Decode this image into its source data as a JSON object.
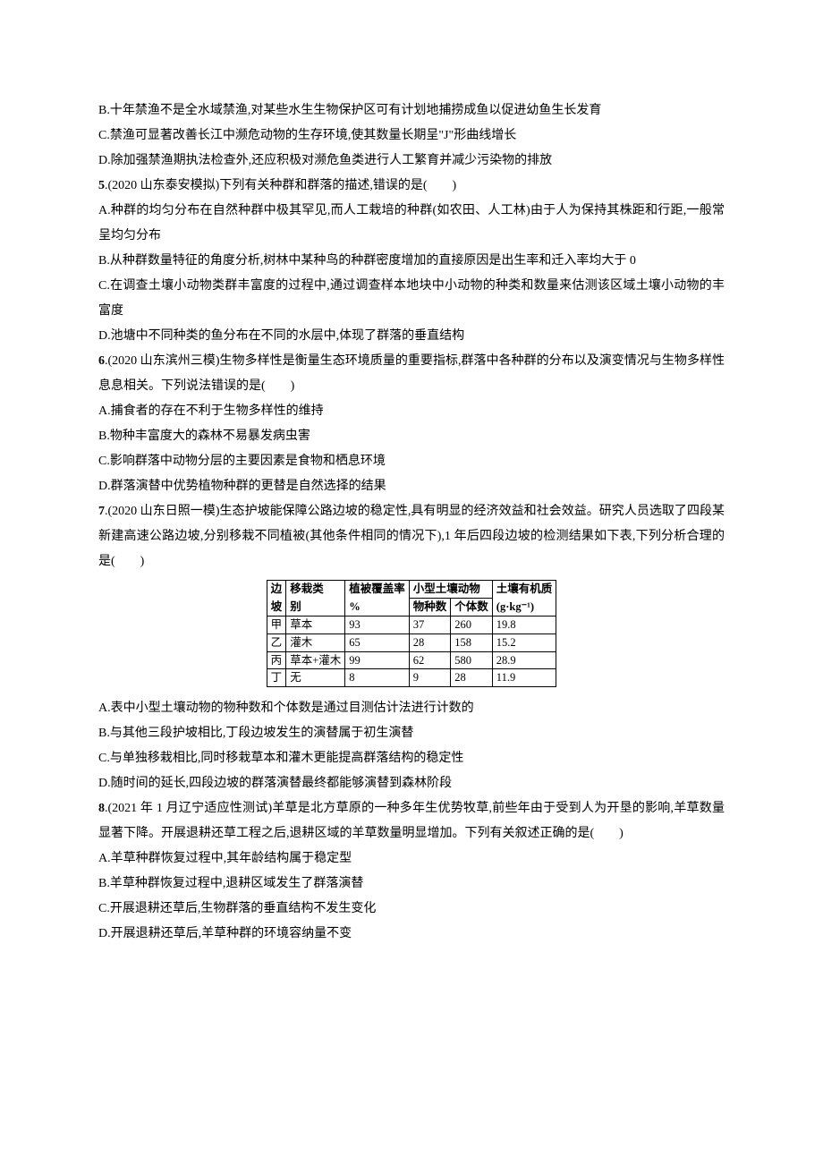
{
  "paras": {
    "p1": "B.十年禁渔不是全水域禁渔,对某些水生生物保护区可有计划地捕捞成鱼以促进幼鱼生长发育",
    "p2": "C.禁渔可显著改善长江中濒危动物的生存环境,使其数量长期呈\"J\"形曲线增长",
    "p3": "D.除加强禁渔期执法检查外,还应积极对濒危鱼类进行人工繁育并减少污染物的排放",
    "q5_num": "5",
    "q5_src": ".(2020 山东泰安模拟)下列有关种群和群落的描述,错误的是(　　)",
    "q5_A": "A.种群的均匀分布在自然种群中极其罕见,而人工栽培的种群(如农田、人工林)由于人为保持其株距和行距,一般常呈均匀分布",
    "q5_B": "B.从种群数量特征的角度分析,树林中某种鸟的种群密度增加的直接原因是出生率和迁入率均大于 0",
    "q5_C": "C.在调查土壤小动物类群丰富度的过程中,通过调查样本地块中小动物的种类和数量来估测该区域土壤小动物的丰富度",
    "q5_D": "D.池塘中不同种类的鱼分布在不同的水层中,体现了群落的垂直结构",
    "q6_num": "6",
    "q6_src": ".(2020 山东滨州三模)生物多样性是衡量生态环境质量的重要指标,群落中各种群的分布以及演变情况与生物多样性息息相关。下列说法错误的是(　　)",
    "q6_A": "A.捕食者的存在不利于生物多样性的维持",
    "q6_B": "B.物种丰富度大的森林不易暴发病虫害",
    "q6_C": "C.影响群落中动物分层的主要因素是食物和栖息环境",
    "q6_D": "D.群落演替中优势植物种群的更替是自然选择的结果",
    "q7_num": "7",
    "q7_src": ".(2020 山东日照一模)生态护坡能保障公路边坡的稳定性,具有明显的经济效益和社会效益。研究人员选取了四段某新建高速公路边坡,分别移栽不同植被(其他条件相同的情况下),1 年后四段边坡的检测结果如下表,下列分析合理的是(　　)",
    "q7_A": "A.表中小型土壤动物的物种数和个体数是通过目测估计法进行计数的",
    "q7_B": "B.与其他三段护坡相比,丁段边坡发生的演替属于初生演替",
    "q7_C": "C.与单独移栽相比,同时移栽草本和灌木更能提高群落结构的稳定性",
    "q7_D": "D.随时间的延长,四段边坡的群落演替最终都能够演替到森林阶段",
    "q8_num": "8",
    "q8_src": ".(2021 年 1 月辽宁适应性测试)羊草是北方草原的一种多年生优势牧草,前些年由于受到人为开垦的影响,羊草数量显著下降。开展退耕还草工程之后,退耕区域的羊草数量明显增加。下列有关叙述正确的是(　　)",
    "q8_A": "A.羊草种群恢复过程中,其年龄结构属于稳定型",
    "q8_B": "B.羊草种群恢复过程中,退耕区域发生了群落演替",
    "q8_C": "C.开展退耕还草后,生物群落的垂直结构不发生变化",
    "q8_D": "D.开展退耕还草后,羊草种群的环境容纳量不变"
  },
  "table": {
    "headers": {
      "c1_top": "边",
      "c1_bot": "坡",
      "c2_top": "移栽类",
      "c2_bot": "别",
      "c3_top": "植被覆盖率",
      "c3_bot": "%",
      "c45_top": "小型土壤动物",
      "c4_bot": "物种数",
      "c5_bot": "个体数",
      "c6_top": "土壤有机质",
      "c6_bot": "(g·kg⁻¹)"
    },
    "rows": [
      {
        "slope": "甲",
        "type": "草本",
        "cover": "93",
        "species": "37",
        "count": "260",
        "organic": "19.8"
      },
      {
        "slope": "乙",
        "type": "灌木",
        "cover": "65",
        "species": "28",
        "count": "158",
        "organic": "15.2"
      },
      {
        "slope": "丙",
        "type": "草本+灌木",
        "cover": "99",
        "species": "62",
        "count": "580",
        "organic": "28.9"
      },
      {
        "slope": "丁",
        "type": "无",
        "cover": "8",
        "species": "9",
        "count": "28",
        "organic": "11.9"
      }
    ],
    "col_widths": [
      "24px",
      "52px",
      "72px",
      "32px",
      "32px",
      "64px"
    ],
    "border_color": "#000000",
    "font_size": 12.5
  }
}
